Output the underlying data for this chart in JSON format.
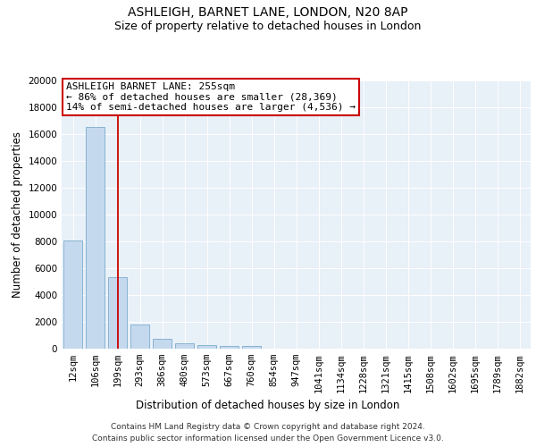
{
  "title": "ASHLEIGH, BARNET LANE, LONDON, N20 8AP",
  "subtitle": "Size of property relative to detached houses in London",
  "xlabel": "Distribution of detached houses by size in London",
  "ylabel": "Number of detached properties",
  "categories": [
    "12sqm",
    "106sqm",
    "199sqm",
    "293sqm",
    "386sqm",
    "480sqm",
    "573sqm",
    "667sqm",
    "760sqm",
    "854sqm",
    "947sqm",
    "1041sqm",
    "1134sqm",
    "1228sqm",
    "1321sqm",
    "1415sqm",
    "1508sqm",
    "1602sqm",
    "1695sqm",
    "1789sqm",
    "1882sqm"
  ],
  "values": [
    8100,
    16500,
    5350,
    1800,
    750,
    400,
    280,
    200,
    170,
    0,
    0,
    0,
    0,
    0,
    0,
    0,
    0,
    0,
    0,
    0,
    0
  ],
  "bar_color": "#c5d9ee",
  "bar_edge_color": "#7aaccc",
  "vline_x": 2.0,
  "vline_color": "#cc0000",
  "annotation_line1": "ASHLEIGH BARNET LANE: 255sqm",
  "annotation_line2": "← 86% of detached houses are smaller (28,369)",
  "annotation_line3": "14% of semi-detached houses are larger (4,536) →",
  "annotation_box_color": "#cc0000",
  "ylim": [
    0,
    20000
  ],
  "yticks": [
    0,
    2000,
    4000,
    6000,
    8000,
    10000,
    12000,
    14000,
    16000,
    18000,
    20000
  ],
  "bg_color": "#e8f0f8",
  "footer_line1": "Contains HM Land Registry data © Crown copyright and database right 2024.",
  "footer_line2": "Contains public sector information licensed under the Open Government Licence v3.0.",
  "title_fontsize": 10,
  "subtitle_fontsize": 9,
  "annotation_fontsize": 8,
  "axis_label_fontsize": 8.5,
  "tick_fontsize": 7.5,
  "footer_fontsize": 6.5
}
